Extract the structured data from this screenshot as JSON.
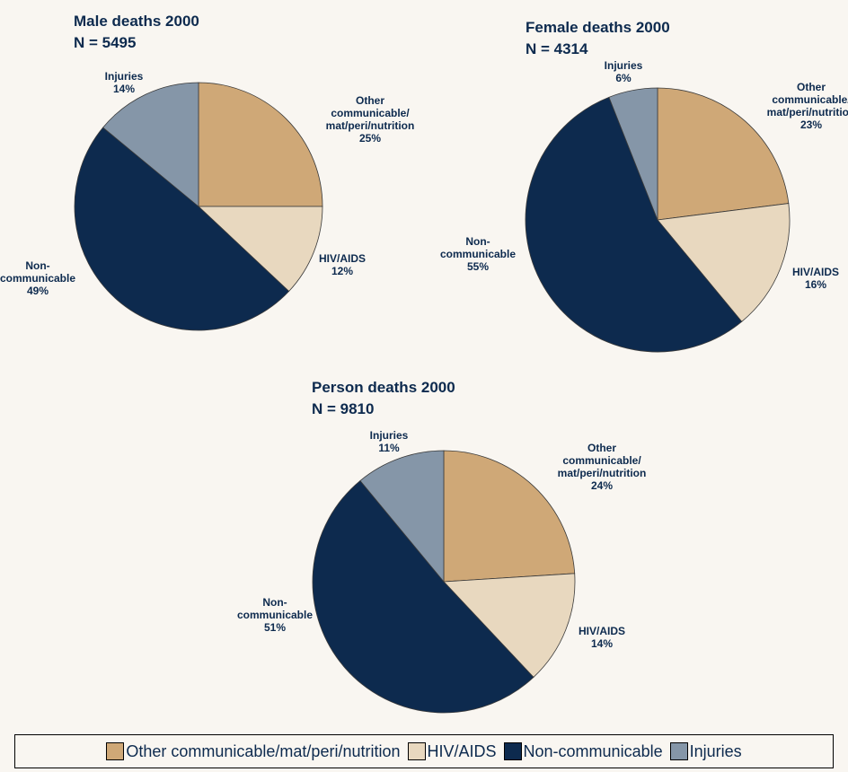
{
  "chart_data": [
    {
      "type": "pie",
      "title": "Male deaths 2000",
      "subtitle": "N = 5495",
      "categories": [
        "Other\ncommunicable/\nmat/peri/nutrition",
        "HIV/AIDS",
        "Non-\ncommunicable",
        "Injuries"
      ],
      "values": [
        25,
        12,
        49,
        14
      ],
      "value_labels": [
        "25%",
        "12%",
        "49%",
        "14%"
      ]
    },
    {
      "type": "pie",
      "title": "Female deaths 2000",
      "subtitle": "N = 4314",
      "categories": [
        "Other\ncommunicable/\nmat/peri/nutrition",
        "HIV/AIDS",
        "Non-\ncommunicable",
        "Injuries"
      ],
      "values": [
        23,
        16,
        55,
        6
      ],
      "value_labels": [
        "23%",
        "16%",
        "55%",
        "6%"
      ]
    },
    {
      "type": "pie",
      "title": "Person deaths 2000",
      "subtitle": "N = 9810",
      "categories": [
        "Other\ncommunicable/\nmat/peri/nutrition",
        "HIV/AIDS",
        "Non-\ncommunicable",
        "Injuries"
      ],
      "values": [
        24,
        14,
        51,
        11
      ],
      "value_labels": [
        "24%",
        "14%",
        "51%",
        "11%"
      ]
    }
  ],
  "legend": {
    "labels": [
      "Other communicable/mat/peri/nutrition",
      "HIV/AIDS",
      "Non-communicable",
      "Injuries"
    ],
    "colors": [
      "#cfa877",
      "#e8d8bf",
      "#0d2a4e",
      "#8596a8"
    ]
  }
}
